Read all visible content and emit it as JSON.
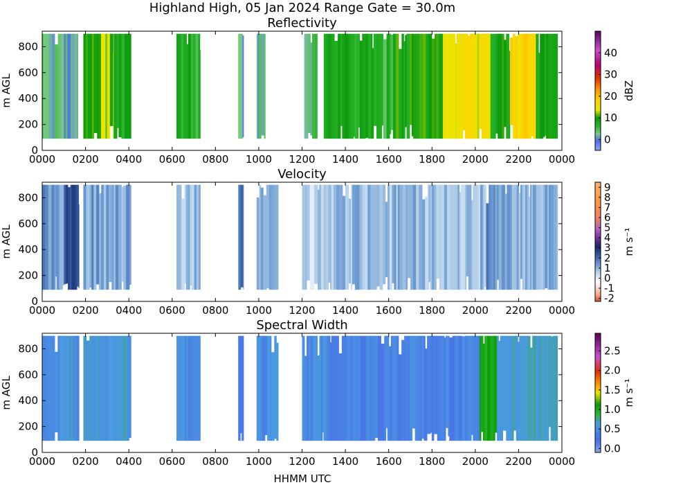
{
  "figure": {
    "suptitle": "Highland High, 05 Jan 2024 Range Gate = 30.0m",
    "xlabel": "HHMM UTC"
  },
  "chart_data": [
    {
      "type": "heatmap",
      "title": "Reflectivity",
      "ylabel": "m AGL",
      "colorbar_label": "dBZ",
      "xlim": [
        0,
        24
      ],
      "ylim": [
        0,
        920
      ],
      "x_ticks": [
        "0000",
        "0200",
        "0400",
        "0600",
        "0800",
        "1000",
        "1200",
        "1400",
        "1600",
        "1800",
        "2000",
        "2200",
        "0000"
      ],
      "y_ticks": [
        0,
        200,
        400,
        600,
        800
      ],
      "color_range": [
        -5,
        50
      ],
      "colorbar_ticks": [
        "0",
        "10",
        "20",
        "30",
        "40"
      ],
      "colorbar_tick_values": [
        0,
        10,
        20,
        30,
        40
      ],
      "echo_top_m": 900,
      "echo_base_m": 90,
      "segments": [
        {
          "start": 0.0,
          "end": 1.0,
          "level": 3
        },
        {
          "start": 1.0,
          "end": 1.65,
          "level": 2
        },
        {
          "start": 1.9,
          "end": 2.3,
          "level": 9
        },
        {
          "start": 2.3,
          "end": 3.3,
          "level": 12
        },
        {
          "start": 3.3,
          "end": 4.1,
          "level": 8
        },
        {
          "start": 6.2,
          "end": 7.3,
          "level": 7
        },
        {
          "start": 9.05,
          "end": 9.3,
          "level": 1
        },
        {
          "start": 9.9,
          "end": 10.3,
          "level": 2
        },
        {
          "start": 12.1,
          "end": 12.7,
          "level": 4
        },
        {
          "start": 13.0,
          "end": 15.3,
          "level": 8
        },
        {
          "start": 15.3,
          "end": 16.2,
          "level": 6
        },
        {
          "start": 16.2,
          "end": 18.5,
          "level": 9
        },
        {
          "start": 18.5,
          "end": 20.7,
          "level": 15
        },
        {
          "start": 20.7,
          "end": 21.6,
          "level": 9
        },
        {
          "start": 21.6,
          "end": 22.8,
          "level": 17
        },
        {
          "start": 22.8,
          "end": 23.8,
          "level": 9
        }
      ]
    },
    {
      "type": "heatmap",
      "title": "Velocity",
      "ylabel": "m AGL",
      "colorbar_label": "m s⁻¹",
      "xlim": [
        0,
        24
      ],
      "ylim": [
        0,
        920
      ],
      "x_ticks": [
        "0000",
        "0200",
        "0400",
        "0600",
        "0800",
        "1000",
        "1200",
        "1400",
        "1600",
        "1800",
        "2000",
        "2200",
        "0000"
      ],
      "y_ticks": [
        0,
        200,
        400,
        600,
        800
      ],
      "color_range": [
        -2.3,
        9.5
      ],
      "colorbar_ticks": [
        "-2",
        "-1",
        "0",
        "1",
        "2",
        "3",
        "4",
        "5",
        "6",
        "7",
        "8",
        "9"
      ],
      "colorbar_tick_values": [
        -2,
        -1,
        0,
        1,
        2,
        3,
        4,
        5,
        6,
        7,
        8,
        9
      ],
      "echo_top_m": 900,
      "echo_base_m": 90,
      "segments": [
        {
          "start": 0.0,
          "end": 1.0,
          "level": 1.4
        },
        {
          "start": 1.0,
          "end": 1.7,
          "level": 2.4
        },
        {
          "start": 1.9,
          "end": 4.1,
          "level": 1.2
        },
        {
          "start": 6.2,
          "end": 7.3,
          "level": 0.9
        },
        {
          "start": 9.05,
          "end": 9.3,
          "level": 1.8
        },
        {
          "start": 9.9,
          "end": 10.9,
          "level": 0.8
        },
        {
          "start": 12.0,
          "end": 13.3,
          "level": 0.5
        },
        {
          "start": 13.3,
          "end": 20.5,
          "level": 0.9
        },
        {
          "start": 20.5,
          "end": 21.0,
          "level": 1.6
        },
        {
          "start": 21.0,
          "end": 23.8,
          "level": 1.1
        }
      ]
    },
    {
      "type": "heatmap",
      "title": "Spectral Width",
      "ylabel": "m AGL",
      "colorbar_label": "m s⁻¹",
      "xlim": [
        0,
        24
      ],
      "ylim": [
        0,
        920
      ],
      "x_ticks": [
        "0000",
        "0200",
        "0400",
        "0600",
        "0800",
        "1000",
        "1200",
        "1400",
        "1600",
        "1800",
        "2000",
        "2200",
        "0000"
      ],
      "y_ticks": [
        0,
        200,
        400,
        600,
        800
      ],
      "color_range": [
        -0.1,
        2.95
      ],
      "colorbar_ticks": [
        "0.0",
        "0.5",
        "1.0",
        "1.5",
        "2.0",
        "2.5"
      ],
      "colorbar_tick_values": [
        0,
        0.5,
        1.0,
        1.5,
        2.0,
        2.5
      ],
      "echo_top_m": 900,
      "echo_base_m": 90,
      "segments": [
        {
          "start": 0.0,
          "end": 1.7,
          "level": 0.55
        },
        {
          "start": 1.9,
          "end": 4.1,
          "level": 0.6
        },
        {
          "start": 6.2,
          "end": 7.3,
          "level": 0.5
        },
        {
          "start": 9.05,
          "end": 9.3,
          "level": 0.45
        },
        {
          "start": 9.9,
          "end": 10.9,
          "level": 0.5
        },
        {
          "start": 12.0,
          "end": 13.3,
          "level": 0.5
        },
        {
          "start": 13.3,
          "end": 20.2,
          "level": 0.4
        },
        {
          "start": 20.2,
          "end": 21.0,
          "level": 1.0
        },
        {
          "start": 21.0,
          "end": 23.8,
          "level": 0.7
        }
      ]
    }
  ]
}
